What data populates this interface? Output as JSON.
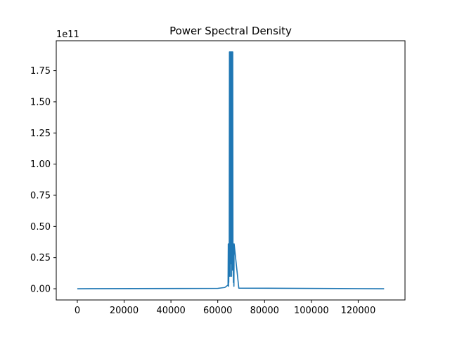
{
  "chart_data": {
    "type": "line",
    "title": "Power Spectral Density",
    "xlabel": "",
    "ylabel": "",
    "y_offset_text": "1e11",
    "xlim": [
      -9000,
      140000
    ],
    "ylim": [
      -0.09,
      1.99
    ],
    "x_ticks": [
      0,
      20000,
      40000,
      60000,
      80000,
      100000,
      120000
    ],
    "x_tick_labels": [
      "0",
      "20000",
      "40000",
      "60000",
      "80000",
      "100000",
      "120000"
    ],
    "y_ticks": [
      0.0,
      0.25,
      0.5,
      0.75,
      1.0,
      1.25,
      1.5,
      1.75
    ],
    "y_tick_labels": [
      "0.00",
      "0.25",
      "0.50",
      "0.75",
      "1.00",
      "1.25",
      "1.50",
      "1.75"
    ],
    "grid": false,
    "series_color": "#1f77b4",
    "series": [
      {
        "x": [
          0,
          60000,
          63000,
          64400,
          64500,
          64600,
          64650,
          64700,
          64800,
          64900,
          65000,
          65100,
          65200,
          65300,
          65400,
          65500,
          65600,
          65700,
          65800,
          65900,
          66000,
          66100,
          66200,
          66300,
          66400,
          66500,
          66600,
          66700,
          66800,
          66900,
          67000,
          69000,
          131072
        ],
        "y": [
          0.0,
          0.003,
          0.01,
          0.03,
          0.36,
          0.02,
          0.36,
          0.05,
          0.36,
          0.1,
          1.9,
          0.2,
          1.9,
          0.1,
          1.9,
          0.3,
          1.9,
          0.2,
          1.9,
          0.1,
          1.9,
          0.25,
          1.9,
          0.15,
          1.9,
          0.3,
          0.36,
          0.05,
          0.36,
          0.02,
          0.36,
          0.005,
          0.0
        ]
      }
    ]
  }
}
